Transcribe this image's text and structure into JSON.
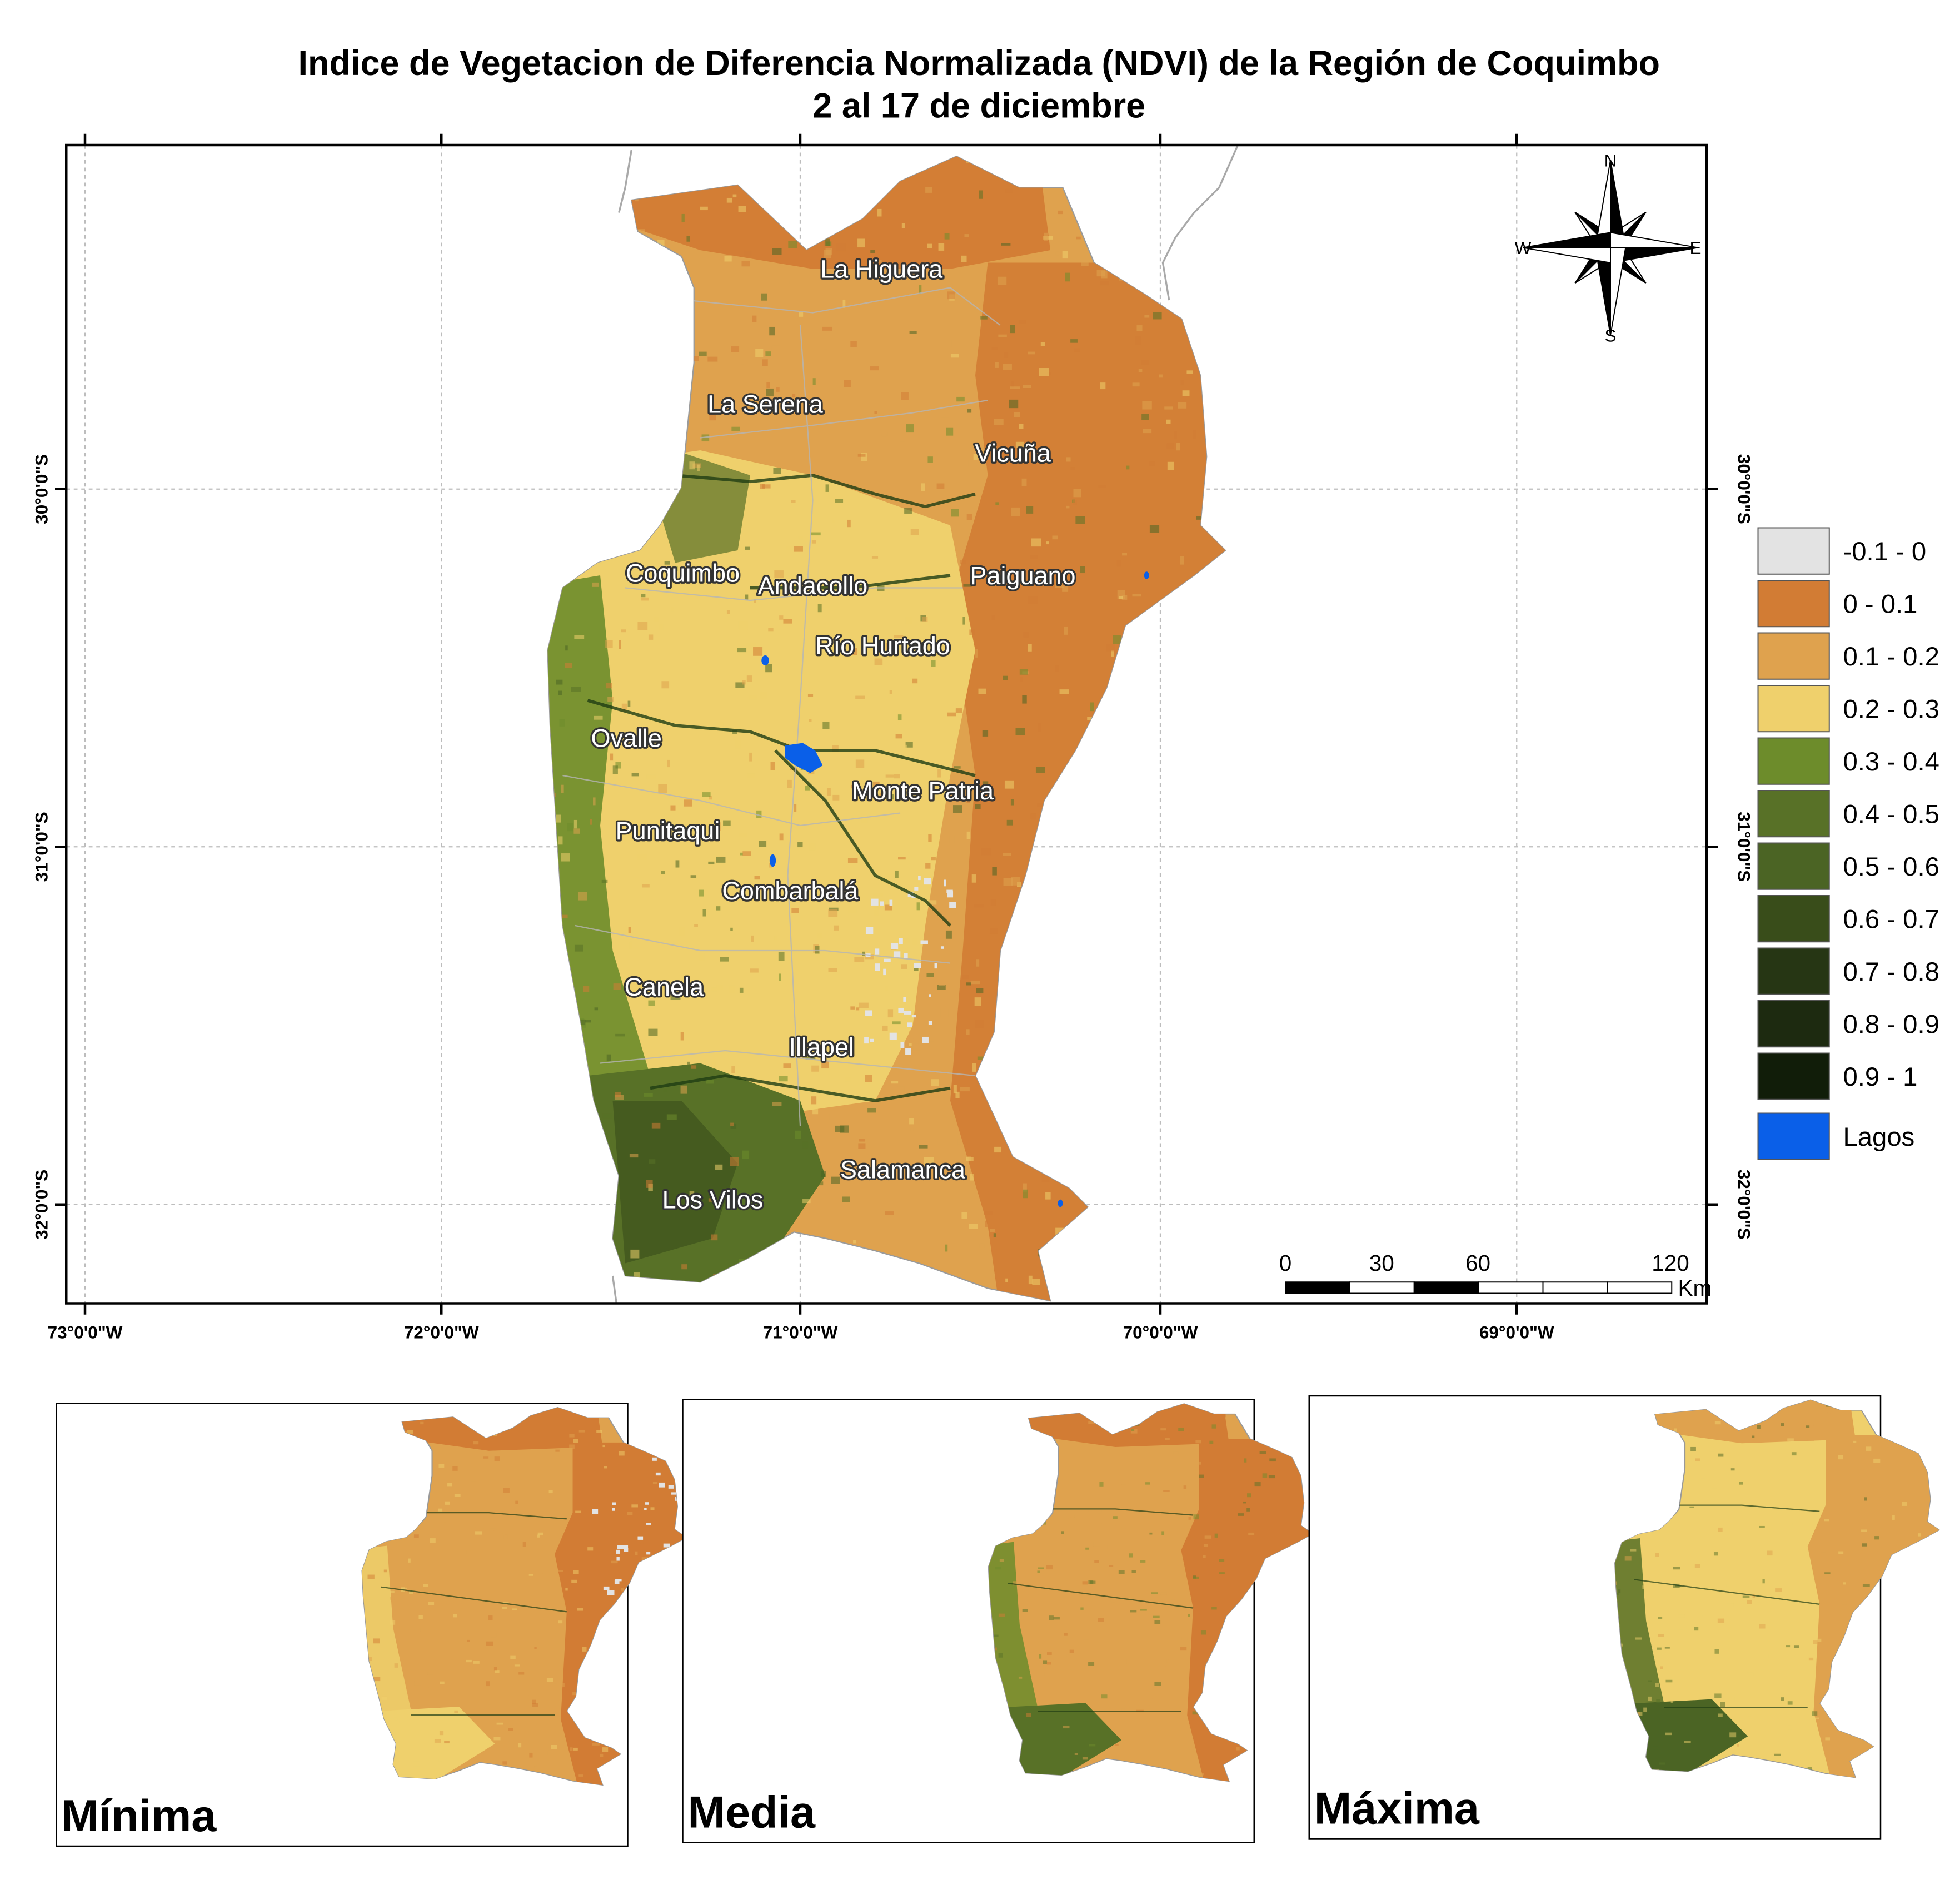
{
  "title": {
    "line1": "Indice de Vegetacion de Diferencia Normalizada (NDVI) de la Región de Coquimbo",
    "line2": "2 al 17 de diciembre"
  },
  "colors": {
    "lagos": "#0a5fe8",
    "water_lines": "#1f3d14"
  },
  "axes": {
    "lon_labels": [
      "73°0'0\"W",
      "72°0'0\"W",
      "71°0'0\"W",
      "70°0'0\"W",
      "69°0'0\"W"
    ],
    "lat_labels": [
      "30°0'0\"S",
      "31°0'0\"S",
      "32°0'0\"S"
    ]
  },
  "places": [
    "La Higuera",
    "La Serena",
    "Vicuña",
    "Coquimbo",
    "Andacollo",
    "Paiguano",
    "Río Hurtado",
    "Ovalle",
    "Monte Patria",
    "Punitaqui",
    "Combarbalá",
    "Canela",
    "Illapel",
    "Salamanca",
    "Los Vilos"
  ],
  "legend": [
    {
      "label": "-0.1 - 0",
      "color": "#e3e3e3"
    },
    {
      "label": "0 - 0.1",
      "color": "#d27c34"
    },
    {
      "label": "0.1 - 0.2",
      "color": "#dfa24e"
    },
    {
      "label": "0.2 - 0.3",
      "color": "#efd06c"
    },
    {
      "label": "0.3 - 0.4",
      "color": "#6d8c2b"
    },
    {
      "label": "0.4 - 0.5",
      "color": "#587127"
    },
    {
      "label": "0.5 - 0.6",
      "color": "#4b6424"
    },
    {
      "label": "0.6 - 0.7",
      "color": "#394d1a"
    },
    {
      "label": "0.7 - 0.8",
      "color": "#263614"
    },
    {
      "label": "0.8 - 0.9",
      "color": "#1d2a10"
    },
    {
      "label": "0.9 - 1",
      "color": "#111d09"
    },
    {
      "label": "Lagos",
      "color": "#0a5fe8"
    }
  ],
  "compass": {
    "n": "N",
    "s": "S",
    "e": "E",
    "w": "W"
  },
  "scalebar": {
    "ticks": [
      "0",
      "30",
      "60",
      "120"
    ],
    "unit": "Km"
  },
  "insets": [
    {
      "label": "Mínima"
    },
    {
      "label": "Media"
    },
    {
      "label": "Máxima"
    }
  ]
}
